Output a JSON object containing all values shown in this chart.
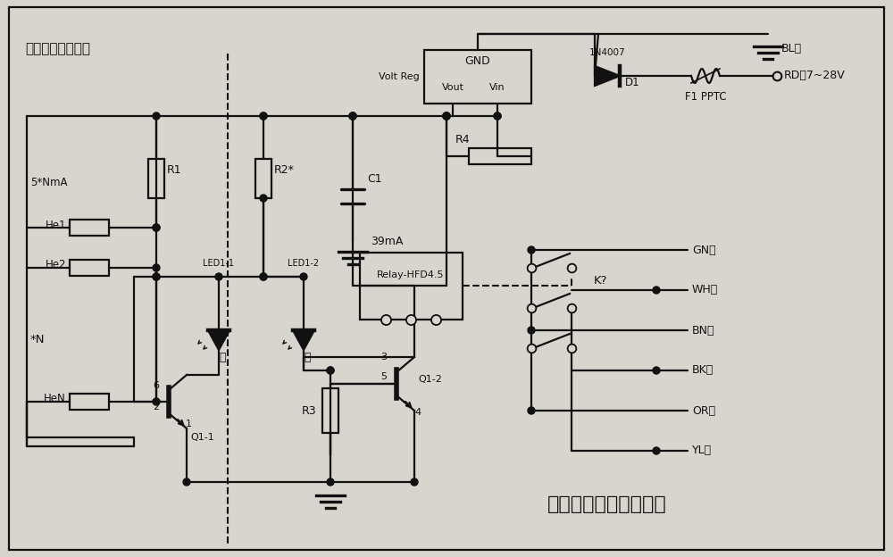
{
  "bg_color": "#d8d5ce",
  "line_color": "#111111",
  "title_main": "霍尔与逻辑磁编码电路",
  "title_sub": "霍尔与逻辑磁编码",
  "label_5NmA": "5*NmA",
  "label_He1": "He1",
  "label_He2": "He2",
  "label_HeN": "HeN",
  "label_starN": "*N",
  "label_R1": "R1",
  "label_R2": "R2*",
  "label_C1": "C1",
  "label_R4": "R4",
  "label_R3": "R3",
  "label_Q11": "Q1-1",
  "label_Q12": "Q1-2",
  "label_LED11": "LED1-1",
  "label_LED12": "LED1-2",
  "label_red": "红",
  "label_green": "绿",
  "label_relay": "Relay-HFD4.5",
  "label_39mA": "39mA",
  "label_VoltReg": "Volt Reg",
  "label_GND_box": "GND",
  "label_Vout": "Vout",
  "label_Vin": "Vin",
  "label_1N4007": "1N4007",
  "label_D1": "D1",
  "label_F1PPTC": "F1 PPTC",
  "label_BL": "BL蓝",
  "label_RD": "RD红7~28V",
  "label_GN": "GN绿",
  "label_WH": "WH白",
  "label_BN": "BN棕",
  "label_BK": "BK黑",
  "label_OR": "OR橙",
  "label_YL": "YL黄",
  "label_K": "K?"
}
